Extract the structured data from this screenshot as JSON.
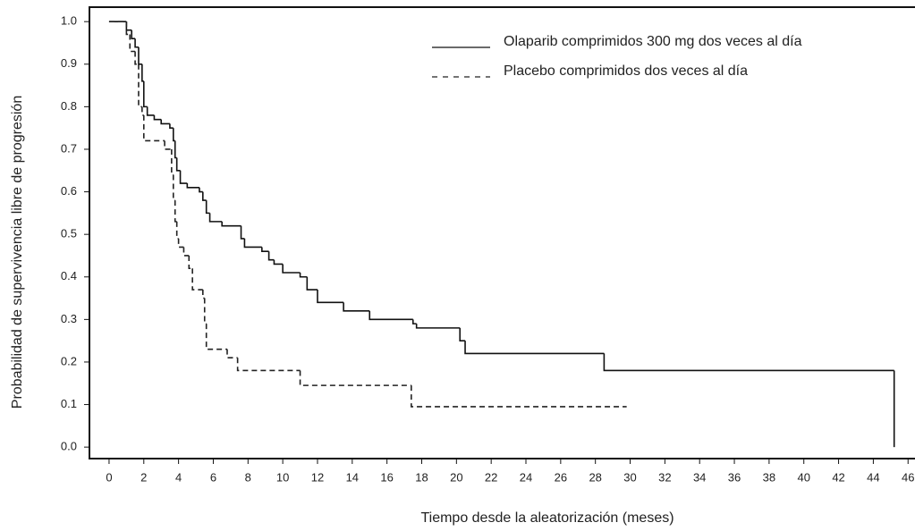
{
  "chart_data": {
    "type": "step",
    "x_label": "Tiempo desde la aleatorización (meses)",
    "y_label": "Probabilidad de supervivencia libre de progresión",
    "xlim": [
      -1.13,
      46.4
    ],
    "ylim": [
      -0.027,
      1.034
    ],
    "xticks": [
      0,
      2,
      4,
      6,
      8,
      10,
      12,
      14,
      16,
      18,
      20,
      22,
      24,
      26,
      28,
      30,
      32,
      34,
      36,
      38,
      40,
      42,
      44,
      46
    ],
    "yticks": [
      {
        "value": 0,
        "label": "0.0"
      },
      {
        "value": 0.1,
        "label": "0.1"
      },
      {
        "value": 0.2,
        "label": "0.2"
      },
      {
        "value": 0.3,
        "label": "0.3"
      },
      {
        "value": 0.4,
        "label": "0.4"
      },
      {
        "value": 0.5,
        "label": "0.5"
      },
      {
        "value": 0.6,
        "label": "0.6"
      },
      {
        "value": 0.7,
        "label": "0.7"
      },
      {
        "value": 0.8,
        "label": "0.8"
      },
      {
        "value": 0.9,
        "label": "0.9"
      },
      {
        "value": 1,
        "label": "1.0"
      }
    ],
    "series": [
      {
        "name": "Olaparib comprimidos 300 mg dos veces al día",
        "color": "#111",
        "dash": "solid",
        "x": [
          0,
          1.0,
          1.3,
          1.5,
          1.7,
          1.9,
          2.0,
          2.2,
          2.6,
          3.0,
          3.5,
          3.7,
          3.8,
          3.9,
          4.1,
          4.5,
          5.2,
          5.4,
          5.6,
          5.8,
          6.5,
          7.6,
          7.8,
          8.8,
          9.2,
          9.5,
          10.0,
          11.0,
          11.4,
          12.0,
          13.5,
          15.0,
          17.5,
          17.7,
          20.2,
          20.5,
          28.5,
          45.2
        ],
        "values": [
          1.0,
          0.98,
          0.96,
          0.94,
          0.9,
          0.86,
          0.8,
          0.78,
          0.77,
          0.76,
          0.75,
          0.72,
          0.68,
          0.65,
          0.62,
          0.61,
          0.6,
          0.58,
          0.55,
          0.53,
          0.52,
          0.49,
          0.47,
          0.46,
          0.44,
          0.43,
          0.41,
          0.4,
          0.37,
          0.34,
          0.32,
          0.3,
          0.29,
          0.28,
          0.25,
          0.22,
          0.18,
          0.0
        ]
      },
      {
        "name": "Placebo comprimidos dos veces al día",
        "color": "#222",
        "dash": "dashed",
        "x": [
          0,
          1.0,
          1.2,
          1.5,
          1.7,
          1.9,
          2.0,
          3.2,
          3.6,
          3.7,
          3.8,
          3.9,
          4.0,
          4.3,
          4.6,
          4.8,
          5.4,
          5.5,
          5.6,
          6.8,
          7.4,
          11.0,
          17.4,
          29.8
        ],
        "values": [
          1.0,
          0.97,
          0.93,
          0.9,
          0.8,
          0.78,
          0.72,
          0.7,
          0.64,
          0.58,
          0.53,
          0.49,
          0.47,
          0.45,
          0.42,
          0.37,
          0.35,
          0.29,
          0.23,
          0.21,
          0.18,
          0.145,
          0.095,
          0.095
        ]
      }
    ]
  }
}
